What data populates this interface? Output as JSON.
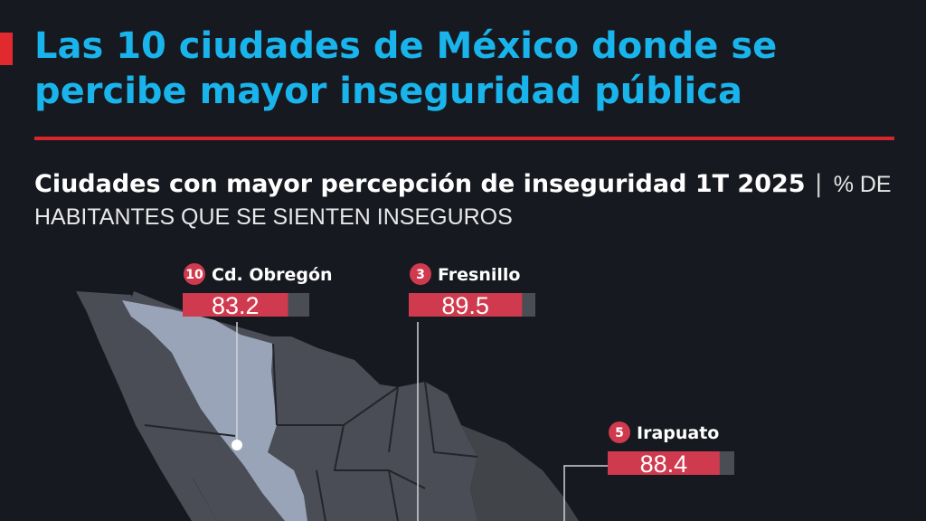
{
  "title": "Las 10 ciudades de México donde se percibe mayor inseguridad pública",
  "subtitle": "Ciudades con mayor percepción de inseguridad 1T 2025",
  "unit": "% DE HABITANTES QUE SE SIENTEN INSEGUROS",
  "colors": {
    "title": "#19b4ec",
    "accent": "#e02a2e",
    "bar_fill": "#d03a4e",
    "bar_track": "#4a4d55",
    "map_land": "#4a4d55",
    "map_highlight": "#99a4b8",
    "background": "#16191f"
  },
  "chart_data": {
    "type": "bar",
    "title": "Ciudades con mayor percepción de inseguridad 1T 2025",
    "ylabel": "% DE HABITANTES QUE SE SIENTEN INSEGUROS",
    "ylim": [
      0,
      100
    ],
    "categories": [
      "Cd. Obregón",
      "Fresnillo",
      "Irapuato"
    ],
    "ranks": [
      10,
      3,
      5
    ],
    "values": [
      83.2,
      89.5,
      88.4
    ]
  }
}
